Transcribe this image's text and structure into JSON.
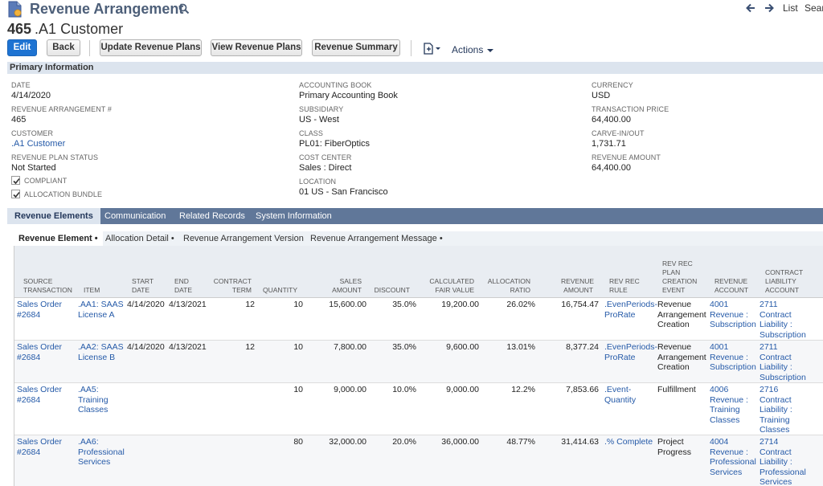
{
  "header": {
    "record_type": "Revenue Arrangement",
    "record_number": "465",
    "record_name": ".A1 Customer",
    "nav_list": "List",
    "nav_search": "Search"
  },
  "toolbar": {
    "edit": "Edit",
    "back": "Back",
    "update_plans": "Update Revenue Plans",
    "view_plans": "View Revenue Plans",
    "summary": "Revenue Summary",
    "actions": "Actions"
  },
  "primary": {
    "section_title": "Primary Information",
    "date_label": "DATE",
    "date": "4/14/2020",
    "arr_num_label": "REVENUE ARRANGEMENT #",
    "arr_num": "465",
    "customer_label": "CUSTOMER",
    "customer": ".A1 Customer",
    "plan_status_label": "REVENUE PLAN STATUS",
    "plan_status": "Not Started",
    "compliant_label": "COMPLIANT",
    "allocation_label": "ALLOCATION BUNDLE",
    "acct_book_label": "ACCOUNTING BOOK",
    "acct_book": "Primary Accounting Book",
    "subsidiary_label": "SUBSIDIARY",
    "subsidiary": "US - West",
    "class_label": "CLASS",
    "class": "PL01: FiberOptics",
    "cost_center_label": "COST CENTER",
    "cost_center": "Sales : Direct",
    "location_label": "LOCATION",
    "location": "01 US - San Francisco",
    "currency_label": "CURRENCY",
    "currency": "USD",
    "txn_price_label": "TRANSACTION PRICE",
    "txn_price": "64,400.00",
    "carve_label": "CARVE-IN/OUT",
    "carve": "1,731.71",
    "rev_amount_label": "REVENUE AMOUNT",
    "rev_amount": "64,400.00"
  },
  "tabs": [
    "Revenue Elements",
    "Communication",
    "Related Records",
    "System Information"
  ],
  "subtabs": [
    "Revenue Element •",
    "Allocation Detail •",
    "Revenue Arrangement Version",
    "Revenue Arrangement Message •"
  ],
  "table": {
    "columns": {
      "source": "SOURCE TRANSACTION",
      "item": "ITEM",
      "start": "START DATE",
      "end": "END DATE",
      "term": "CONTRACT TERM",
      "qty": "QUANTITY",
      "sales": "SALES AMOUNT",
      "discount": "DISCOUNT",
      "fair": "CALCULATED FAIR VALUE",
      "alloc": "ALLOCATION RATIO",
      "revamt": "REVENUE AMOUNT",
      "rule": "REV REC RULE",
      "event": "REV REC PLAN CREATION EVENT",
      "account": "REVENUE ACCOUNT",
      "liability": "CONTRACT LIABILITY ACCOUNT"
    },
    "rows": [
      {
        "source": "Sales Order #2684",
        "item": ".AA1: SAAS License A",
        "start": "4/14/2020",
        "end": "4/13/2021",
        "term": "12",
        "qty": "10",
        "sales": "15,600.00",
        "discount": "35.0%",
        "fair": "19,200.00",
        "alloc": "26.02%",
        "revamt": "16,754.47",
        "rule": ".EvenPeriods-ProRate",
        "event": "Revenue Arrangement Creation",
        "account": "4001 Revenue : Subscription",
        "liability": "2711 Contract Liability : Subscription"
      },
      {
        "source": "Sales Order #2684",
        "item": ".AA2: SAAS License B",
        "start": "4/14/2020",
        "end": "4/13/2021",
        "term": "12",
        "qty": "10",
        "sales": "7,800.00",
        "discount": "35.0%",
        "fair": "9,600.00",
        "alloc": "13.01%",
        "revamt": "8,377.24",
        "rule": ".EvenPeriods-ProRate",
        "event": "Revenue Arrangement Creation",
        "account": "4001 Revenue : Subscription",
        "liability": "2711 Contract Liability : Subscription"
      },
      {
        "source": "Sales Order #2684",
        "item": ".AA5: Training Classes",
        "start": "",
        "end": "",
        "term": "",
        "qty": "10",
        "sales": "9,000.00",
        "discount": "10.0%",
        "fair": "9,000.00",
        "alloc": "12.2%",
        "revamt": "7,853.66",
        "rule": ".Event-Quantity",
        "event": "Fulfillment",
        "account": "4006 Revenue : Training Classes",
        "liability": "2716 Contract Liability : Training Classes"
      },
      {
        "source": "Sales Order #2684",
        "item": ".AA6: Professional Services",
        "start": "",
        "end": "",
        "term": "",
        "qty": "80",
        "sales": "32,000.00",
        "discount": "20.0%",
        "fair": "36,000.00",
        "alloc": "48.77%",
        "revamt": "31,414.63",
        "rule": ".% Complete",
        "event": "Project Progress",
        "account": "4004 Revenue : Professional Services",
        "liability": "2714 Contract Liability : Professional Services"
      }
    ]
  }
}
